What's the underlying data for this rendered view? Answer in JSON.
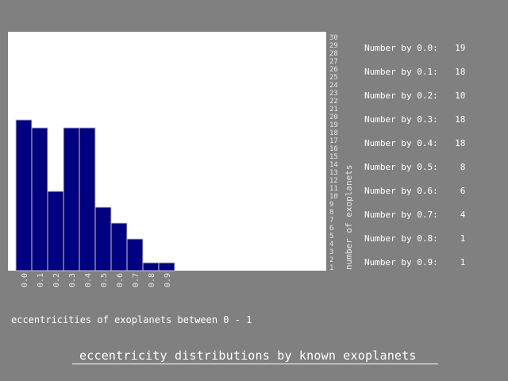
{
  "colors": {
    "background": "#808080",
    "plot_area": "#ffffff",
    "bar_fill": "#000080",
    "bar_edge": "#c8c8c8",
    "text": "#ffffff",
    "axis_text": "#e6e6e6"
  },
  "legend": {
    "rows": [
      {
        "label": "Number by 0.0:",
        "value": "19"
      },
      {
        "label": "Number by 0.1:",
        "value": "18"
      },
      {
        "label": "Number by 0.2:",
        "value": "10"
      },
      {
        "label": "Number by 0.3:",
        "value": "18"
      },
      {
        "label": "Number by 0.4:",
        "value": "18"
      },
      {
        "label": "Number by 0.5:",
        "value": "8"
      },
      {
        "label": "Number by 0.6:",
        "value": "6"
      },
      {
        "label": "Number by 0.7:",
        "value": "4"
      },
      {
        "label": "Number by 0.8:",
        "value": "1"
      },
      {
        "label": "Number by 0.9:",
        "value": "1"
      }
    ]
  },
  "chart_data": {
    "type": "bar",
    "categories": [
      "0.0",
      "0.1",
      "0.2",
      "0.3",
      "0.4",
      "0.5",
      "0.6",
      "0.7",
      "0.8",
      "0.9"
    ],
    "values": [
      19,
      18,
      10,
      18,
      18,
      8,
      6,
      4,
      1,
      1
    ],
    "title": "eccentricity distributions by known exoplanets",
    "xlabel": "eccentricities of exoplanets between 0 - 1",
    "ylabel": "number of exoplanets",
    "ylim": [
      0,
      30
    ],
    "yticks": [
      "1",
      "2",
      "3",
      "4",
      "5",
      "6",
      "7",
      "8",
      "9",
      "10",
      "11",
      "12",
      "13",
      "14",
      "15",
      "16",
      "17",
      "18",
      "19",
      "20",
      "21",
      "22",
      "23",
      "24",
      "25",
      "26",
      "27",
      "28",
      "29",
      "30"
    ],
    "grid": false,
    "legend_position": "top-right"
  }
}
